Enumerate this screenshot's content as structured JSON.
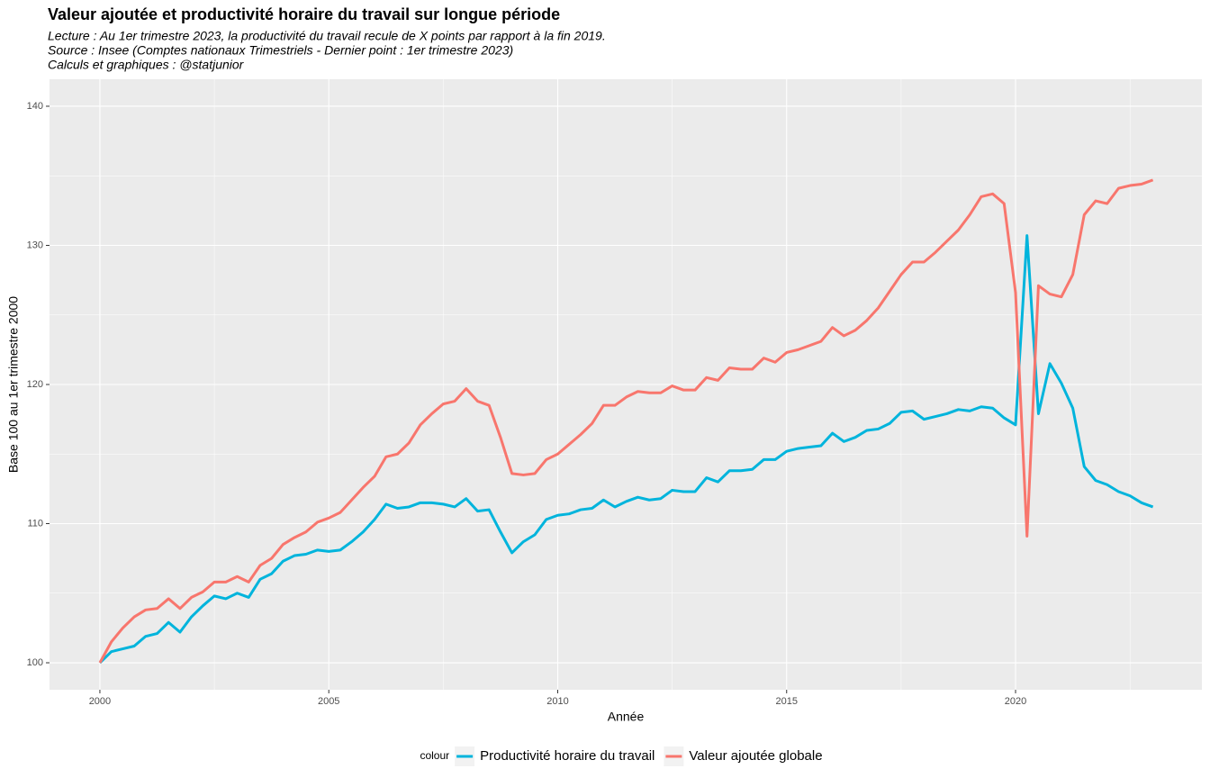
{
  "chart_data": {
    "type": "line",
    "title": "Valeur ajoutée et productivité horaire du travail sur longue période",
    "subtitle": [
      "Lecture : Au 1er trimestre 2023, la productivité du travail recule de X points par rapport à la fin 2019.",
      "Source : Insee (Comptes nationaux Trimestriels - Dernier point : 1er trimestre 2023)",
      "Calculs et graphiques : @statjunior"
    ],
    "x_label": "Année",
    "y_label": "Base 100 au 1er trimestre 2000",
    "legend_title": "colour",
    "legend_position": "bottom",
    "grid": true,
    "x": [
      2000,
      2000.25,
      2000.5,
      2000.75,
      2001,
      2001.25,
      2001.5,
      2001.75,
      2002,
      2002.25,
      2002.5,
      2002.75,
      2003,
      2003.25,
      2003.5,
      2003.75,
      2004,
      2004.25,
      2004.5,
      2004.75,
      2005,
      2005.25,
      2005.5,
      2005.75,
      2006,
      2006.25,
      2006.5,
      2006.75,
      2007,
      2007.25,
      2007.5,
      2007.75,
      2008,
      2008.25,
      2008.5,
      2008.75,
      2009,
      2009.25,
      2009.5,
      2009.75,
      2010,
      2010.25,
      2010.5,
      2010.75,
      2011,
      2011.25,
      2011.5,
      2011.75,
      2012,
      2012.25,
      2012.5,
      2012.75,
      2013,
      2013.25,
      2013.5,
      2013.75,
      2014,
      2014.25,
      2014.5,
      2014.75,
      2015,
      2015.25,
      2015.5,
      2015.75,
      2016,
      2016.25,
      2016.5,
      2016.75,
      2017,
      2017.25,
      2017.5,
      2017.75,
      2018,
      2018.25,
      2018.5,
      2018.75,
      2019,
      2019.25,
      2019.5,
      2019.75,
      2020,
      2020.25,
      2020.5,
      2020.75,
      2021,
      2021.25,
      2021.5,
      2021.75,
      2022,
      2022.25,
      2022.5,
      2022.75,
      2023
    ],
    "series": [
      {
        "name": "Productivité horaire du travail",
        "color": "#00b4dc",
        "values": [
          100,
          100.8,
          101.0,
          101.2,
          101.9,
          102.1,
          102.9,
          102.2,
          103.3,
          104.1,
          104.8,
          104.6,
          105.0,
          104.7,
          106.0,
          106.4,
          107.3,
          107.7,
          107.8,
          108.1,
          108.0,
          108.1,
          108.7,
          109.4,
          110.3,
          111.4,
          111.1,
          111.2,
          111.5,
          111.5,
          111.4,
          111.2,
          111.8,
          110.9,
          111.0,
          109.4,
          107.9,
          108.7,
          109.2,
          110.3,
          110.6,
          110.7,
          111.0,
          111.1,
          111.7,
          111.2,
          111.6,
          111.9,
          111.7,
          111.8,
          112.4,
          112.3,
          112.3,
          113.3,
          113.0,
          113.8,
          113.8,
          113.9,
          114.6,
          114.6,
          115.2,
          115.4,
          115.5,
          115.6,
          116.5,
          115.9,
          116.2,
          116.7,
          116.8,
          117.2,
          118.0,
          118.1,
          117.5,
          117.7,
          117.9,
          118.2,
          118.1,
          118.4,
          118.3,
          117.6,
          117.1,
          130.7,
          117.9,
          121.5,
          120.1,
          118.3,
          114.1,
          113.1,
          112.8,
          112.3,
          112.0,
          111.5,
          111.2
        ]
      },
      {
        "name": "Valeur ajoutée globale",
        "color": "#f8766d",
        "values": [
          100,
          101.5,
          102.5,
          103.3,
          103.8,
          103.9,
          104.6,
          103.9,
          104.7,
          105.1,
          105.8,
          105.8,
          106.2,
          105.8,
          107.0,
          107.5,
          108.5,
          109.0,
          109.4,
          110.1,
          110.4,
          110.8,
          111.7,
          112.6,
          113.4,
          114.8,
          115.0,
          115.8,
          117.1,
          117.9,
          118.6,
          118.8,
          119.7,
          118.8,
          118.5,
          116.2,
          113.6,
          113.5,
          113.6,
          114.6,
          115.0,
          115.7,
          116.4,
          117.2,
          118.5,
          118.5,
          119.1,
          119.5,
          119.4,
          119.4,
          119.9,
          119.6,
          119.6,
          120.5,
          120.3,
          121.2,
          121.1,
          121.1,
          121.9,
          121.6,
          122.3,
          122.5,
          122.8,
          123.1,
          124.1,
          123.5,
          123.9,
          124.6,
          125.5,
          126.7,
          127.9,
          128.8,
          128.8,
          129.5,
          130.3,
          131.1,
          132.2,
          133.5,
          133.7,
          133.0,
          126.6,
          109.1,
          127.1,
          126.5,
          126.3,
          127.9,
          132.2,
          133.2,
          133.0,
          134.1,
          134.3,
          134.4,
          134.7
        ]
      }
    ],
    "xlim": [
      1998.9,
      2024.07
    ],
    "xticks": [
      2000,
      2005,
      2010,
      2015,
      2020
    ],
    "ylim": [
      98.06,
      141.94
    ],
    "yticks": [
      100,
      110,
      120,
      130,
      140
    ]
  }
}
